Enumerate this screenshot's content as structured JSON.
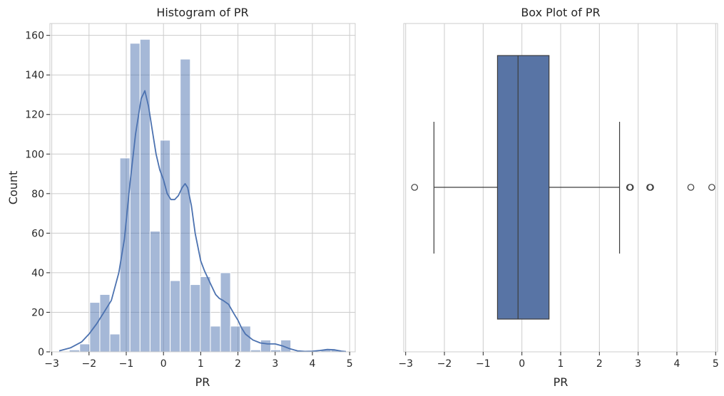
{
  "chart_data": [
    {
      "type": "bar",
      "subtype": "histogram",
      "title": "Histogram of PR",
      "xlabel": "PR",
      "ylabel": "Count",
      "xlim": [
        -3.05,
        5.15
      ],
      "ylim": [
        0,
        166
      ],
      "xticks": [
        -3,
        -2,
        -1,
        0,
        1,
        2,
        3,
        4,
        5
      ],
      "xtick_labels": [
        "−3",
        "−2",
        "−1",
        "0",
        "1",
        "2",
        "3",
        "4",
        "5"
      ],
      "yticks": [
        0,
        20,
        40,
        60,
        80,
        100,
        120,
        140,
        160
      ],
      "ytick_labels": [
        "0",
        "20",
        "40",
        "60",
        "80",
        "100",
        "120",
        "140",
        "160"
      ],
      "grid": true,
      "bar_color": "#4c72b0",
      "bar_opacity": 0.5,
      "bins": [
        {
          "x0": -2.8,
          "x1": -2.53,
          "count": 0
        },
        {
          "x0": -2.53,
          "x1": -2.25,
          "count": 1
        },
        {
          "x0": -2.25,
          "x1": -1.98,
          "count": 4
        },
        {
          "x0": -1.98,
          "x1": -1.71,
          "count": 25
        },
        {
          "x0": -1.71,
          "x1": -1.44,
          "count": 29
        },
        {
          "x0": -1.44,
          "x1": -1.17,
          "count": 9
        },
        {
          "x0": -1.17,
          "x1": -0.9,
          "count": 98
        },
        {
          "x0": -0.9,
          "x1": -0.63,
          "count": 156
        },
        {
          "x0": -0.63,
          "x1": -0.36,
          "count": 158
        },
        {
          "x0": -0.36,
          "x1": -0.09,
          "count": 61
        },
        {
          "x0": -0.09,
          "x1": 0.18,
          "count": 107
        },
        {
          "x0": 0.18,
          "x1": 0.45,
          "count": 36
        },
        {
          "x0": 0.45,
          "x1": 0.72,
          "count": 148
        },
        {
          "x0": 0.72,
          "x1": 0.99,
          "count": 34
        },
        {
          "x0": 0.99,
          "x1": 1.26,
          "count": 38
        },
        {
          "x0": 1.26,
          "x1": 1.53,
          "count": 13
        },
        {
          "x0": 1.53,
          "x1": 1.8,
          "count": 40
        },
        {
          "x0": 1.8,
          "x1": 2.07,
          "count": 13
        },
        {
          "x0": 2.07,
          "x1": 2.34,
          "count": 13
        },
        {
          "x0": 2.34,
          "x1": 2.61,
          "count": 1
        },
        {
          "x0": 2.61,
          "x1": 2.88,
          "count": 6
        },
        {
          "x0": 2.88,
          "x1": 3.15,
          "count": 1
        },
        {
          "x0": 3.15,
          "x1": 3.42,
          "count": 6
        },
        {
          "x0": 3.42,
          "x1": 3.69,
          "count": 0
        },
        {
          "x0": 3.69,
          "x1": 3.96,
          "count": 0
        },
        {
          "x0": 3.96,
          "x1": 4.23,
          "count": 0
        },
        {
          "x0": 4.23,
          "x1": 4.5,
          "count": 1
        },
        {
          "x0": 4.5,
          "x1": 4.77,
          "count": 1
        },
        {
          "x0": 4.77,
          "x1": 4.9,
          "count": 0
        }
      ],
      "kde": {
        "color": "#4c72b0",
        "x": [
          -2.8,
          -2.5,
          -2.2,
          -2.0,
          -1.8,
          -1.6,
          -1.4,
          -1.2,
          -1.05,
          -0.9,
          -0.75,
          -0.6,
          -0.5,
          -0.4,
          -0.3,
          -0.2,
          -0.1,
          0.0,
          0.1,
          0.2,
          0.3,
          0.4,
          0.5,
          0.58,
          0.65,
          0.75,
          0.85,
          1.0,
          1.1,
          1.2,
          1.3,
          1.4,
          1.5,
          1.6,
          1.75,
          1.9,
          2.0,
          2.1,
          2.2,
          2.4,
          2.6,
          2.8,
          3.0,
          3.2,
          3.4,
          3.6,
          3.8,
          4.0,
          4.2,
          4.4,
          4.6,
          4.8,
          4.9
        ],
        "y": [
          0.5,
          2,
          5,
          9,
          14,
          20,
          26,
          40,
          57,
          85,
          110,
          128,
          132,
          124,
          112,
          100,
          92,
          87,
          80,
          77,
          77,
          79,
          83,
          85,
          83,
          74,
          60,
          46,
          41,
          37,
          33,
          29,
          27,
          26,
          24,
          19,
          16,
          12,
          9,
          6,
          4.5,
          4,
          4,
          3,
          1.5,
          0.5,
          0.2,
          0.3,
          0.7,
          1.2,
          1.0,
          0.3,
          0.1
        ]
      }
    },
    {
      "type": "box",
      "title": "Box Plot of PR",
      "xlabel": "PR",
      "xlim": [
        -3.05,
        5.05
      ],
      "xticks": [
        -3,
        -2,
        -1,
        0,
        1,
        2,
        3,
        4,
        5
      ],
      "xtick_labels": [
        "−3",
        "−2",
        "−1",
        "0",
        "1",
        "2",
        "3",
        "4",
        "5"
      ],
      "grid": true,
      "box_color": "#5874a5",
      "whisker_low": -2.27,
      "q1": -0.63,
      "median": -0.1,
      "q3": 0.7,
      "whisker_high": 2.52,
      "outliers": [
        -2.77,
        2.78,
        2.8,
        3.3,
        3.32,
        4.36,
        4.9
      ]
    }
  ]
}
